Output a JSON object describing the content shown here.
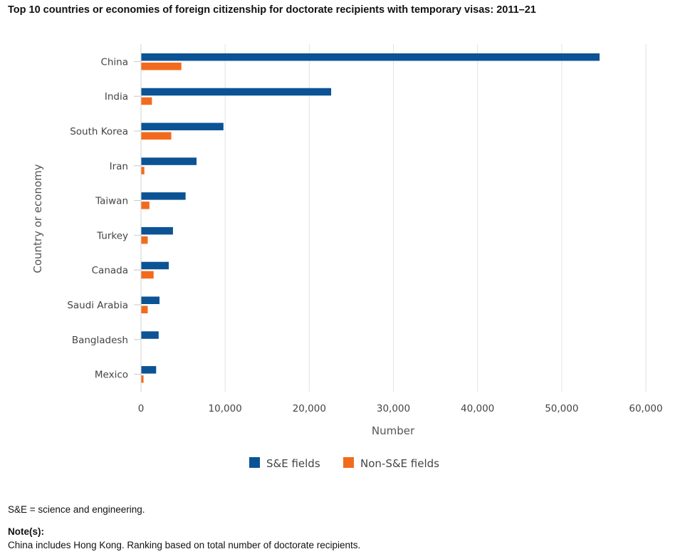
{
  "title": "Top 10 countries or economies of foreign citizenship for doctorate recipients with temporary visas: 2011–21",
  "chart_data": {
    "type": "bar",
    "orientation": "horizontal",
    "categories": [
      "China",
      "India",
      "South Korea",
      "Iran",
      "Taiwan",
      "Turkey",
      "Canada",
      "Saudi Arabia",
      "Bangladesh",
      "Mexico"
    ],
    "series": [
      {
        "name": "S&E fields",
        "color": "#0b5394",
        "values": [
          54500,
          22600,
          9800,
          6600,
          5300,
          3800,
          3300,
          2200,
          2100,
          1800
        ]
      },
      {
        "name": "Non-S&E fields",
        "color": "#f26b1d",
        "values": [
          4800,
          1300,
          3600,
          400,
          1000,
          800,
          1500,
          800,
          0,
          300
        ]
      }
    ],
    "xlabel": "Number",
    "ylabel": "Country or economy",
    "xlim": [
      0,
      60000
    ],
    "xticks": [
      0,
      10000,
      20000,
      30000,
      40000,
      50000,
      60000
    ],
    "xtick_labels": [
      "0",
      "10,000",
      "20,000",
      "30,000",
      "40,000",
      "50,000",
      "60,000"
    ],
    "grid": true,
    "legend_position": "bottom-center"
  },
  "footnotes": {
    "abbreviation": "S&E = science and engineering.",
    "note_heading": "Note(s):",
    "note_text": "China includes Hong Kong. Ranking based on total number of doctorate recipients."
  }
}
